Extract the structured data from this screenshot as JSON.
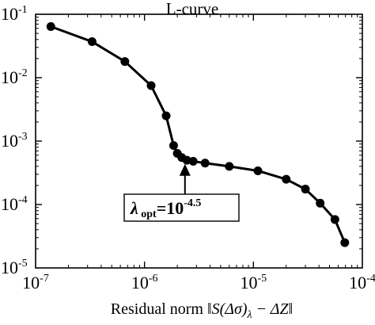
{
  "chart_data": {
    "type": "line",
    "title": "L-curve",
    "xlabel": {
      "prefix": "Residual norm ",
      "formula": "‖S(Δσ)",
      "subscript": "λ",
      "suffix": " − ΔZ‖"
    },
    "ylabel": "",
    "xscale": "log",
    "yscale": "log",
    "xlim": [
      1e-07,
      0.0001
    ],
    "ylim": [
      1e-05,
      0.1
    ],
    "x_ticks": [
      {
        "base": "10",
        "exp": "-7"
      },
      {
        "base": "10",
        "exp": "-6"
      },
      {
        "base": "10",
        "exp": "-5"
      },
      {
        "base": "10",
        "exp": "-4"
      }
    ],
    "y_ticks": [
      {
        "base": "10",
        "exp": "-5"
      },
      {
        "base": "10",
        "exp": "-4"
      },
      {
        "base": "10",
        "exp": "-3"
      },
      {
        "base": "10",
        "exp": "-2"
      },
      {
        "base": "10",
        "exp": "-1"
      }
    ],
    "grid": false,
    "series": [
      {
        "x": [
          1.38e-07,
          3.3e-07,
          6.6e-07,
          1.15e-06,
          1.58e-06,
          1.85e-06,
          2e-06,
          2.2e-06,
          2.45e-06,
          2.8e-06,
          3.6e-06,
          6e-06,
          1.1e-05,
          2e-05,
          3e-05,
          4.1e-05,
          5.6e-05,
          6.9e-05
        ],
        "y": [
          0.064,
          0.037,
          0.018,
          0.0075,
          0.0025,
          0.00085,
          0.00064,
          0.00055,
          0.0005,
          0.00048,
          0.00045,
          0.0004,
          0.00034,
          0.00025,
          0.000175,
          0.000105,
          5.8e-05,
          2.5e-05
        ],
        "color": "#000000"
      }
    ],
    "annotation": {
      "symbol": "λ",
      "subscript": "opt",
      "equals": "=",
      "base": "10",
      "exp": "-4.5",
      "point": {
        "x": 2.2e-06,
        "y": 0.00055
      }
    }
  }
}
